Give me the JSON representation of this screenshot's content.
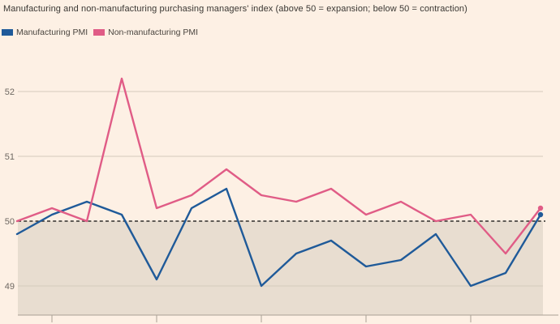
{
  "title": "Manufacturing and non-manufacturing purchasing managers' index (above 50 = expansion; below 50 = contraction)",
  "legend": {
    "items": [
      {
        "label": "Manufacturing PMI",
        "color": "#1f5a99"
      },
      {
        "label": "Non-manufacturing PMI",
        "color": "#e05c86"
      }
    ]
  },
  "colors": {
    "background": "#fdf0e4",
    "shade_below_50": "#e8ddd0",
    "gridline": "#d5cabc",
    "axis": "#a9a094",
    "reference_dash": "#2e2d2b",
    "tick_label": "#6e6862",
    "title_text": "#3a3733",
    "legend_text": "#4a453f",
    "manufacturing_line": "#1f5a99",
    "non_manufacturing_line": "#e05c86"
  },
  "chart_data": {
    "type": "line",
    "title": "Manufacturing and non-manufacturing purchasing managers' index (above 50 = expansion; below 50 = contraction)",
    "xlabel": "",
    "ylabel": "",
    "x_tick_labels_visible": false,
    "point_count": 16,
    "series": [
      {
        "name": "Manufacturing PMI",
        "color": "#1f5a99",
        "values": [
          49.8,
          50.1,
          50.3,
          50.1,
          49.1,
          50.2,
          50.5,
          49.0,
          49.5,
          49.7,
          49.3,
          49.4,
          49.8,
          49.0,
          49.2,
          50.1
        ]
      },
      {
        "name": "Non-manufacturing PMI",
        "color": "#e05c86",
        "values": [
          50.0,
          50.2,
          50.0,
          52.2,
          50.2,
          50.4,
          50.8,
          50.4,
          50.3,
          50.5,
          50.1,
          50.3,
          50.0,
          50.1,
          49.5,
          50.2
        ]
      }
    ],
    "yticks": [
      49,
      50,
      51,
      52
    ],
    "ylim": [
      48.55,
      52.45
    ],
    "reference_line": 50,
    "shade_below": 50,
    "x_tick_point_indices": [
      1,
      4,
      7,
      10,
      13
    ],
    "end_point_markers": true,
    "grid": true,
    "legend_position": "top-left"
  }
}
